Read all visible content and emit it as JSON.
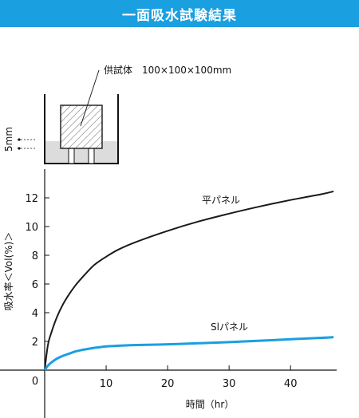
{
  "page": {
    "title": "一面吸水試験結果"
  },
  "setup_diagram": {
    "specimen_label": "供試体　100×100×100mm",
    "depth_label": "5mm"
  },
  "chart_data": {
    "type": "line",
    "title": "",
    "xlabel": "時間（hr）",
    "ylabel": "吸水率＜Vol(%)＞",
    "xlim": [
      0,
      47.5
    ],
    "ylim": [
      0,
      14
    ],
    "x_ticks": [
      0,
      10,
      20,
      30,
      40
    ],
    "y_ticks": [
      2,
      4,
      6,
      8,
      10,
      12
    ],
    "x_tick_labels": [
      "0",
      "10",
      "20",
      "30",
      "40"
    ],
    "y_tick_labels": [
      "2",
      "4",
      "6",
      "8",
      "10",
      "12"
    ],
    "grid": false,
    "series": [
      {
        "name": "平パネル",
        "color": "#1a1a1a",
        "x": [
          0,
          0.5,
          1,
          2,
          3,
          4,
          5,
          6,
          8,
          10,
          12,
          15,
          20,
          25,
          30,
          35,
          40,
          45,
          47
        ],
        "y": [
          0,
          1.7,
          2.5,
          3.7,
          4.6,
          5.3,
          5.9,
          6.4,
          7.3,
          7.9,
          8.4,
          8.95,
          9.7,
          10.35,
          10.9,
          11.4,
          11.85,
          12.25,
          12.45
        ]
      },
      {
        "name": "Slパネル",
        "color": "#1a9fe0",
        "x": [
          0,
          0.5,
          1,
          2,
          3,
          4,
          5,
          6,
          8,
          10,
          12,
          15,
          20,
          25,
          30,
          35,
          40,
          45,
          47
        ],
        "y": [
          0,
          0.3,
          0.5,
          0.8,
          1.0,
          1.15,
          1.3,
          1.4,
          1.55,
          1.65,
          1.7,
          1.75,
          1.8,
          1.87,
          1.95,
          2.05,
          2.15,
          2.25,
          2.3
        ]
      }
    ]
  }
}
